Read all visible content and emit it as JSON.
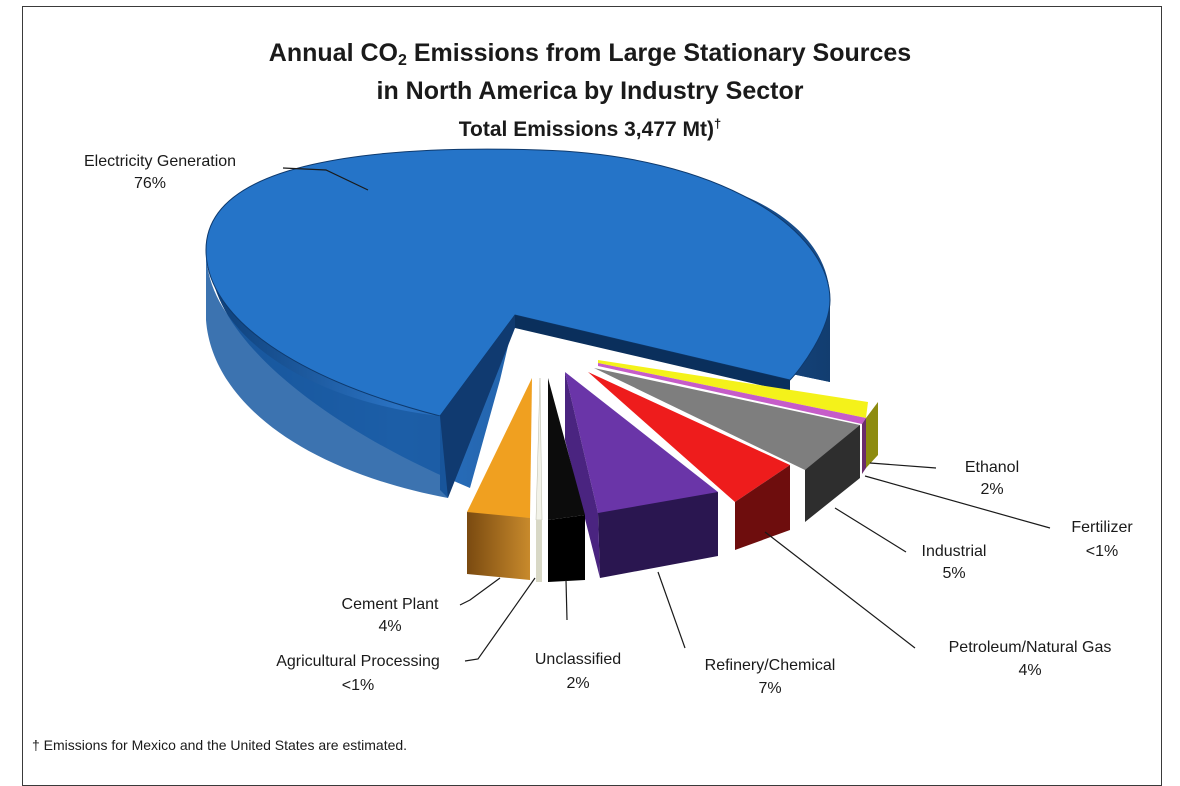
{
  "title": {
    "line1_prefix": "Annual CO",
    "line1_sub": "2",
    "line1_suffix": " Emissions from Large Stationary Sources",
    "line2": "in North America by Industry Sector",
    "subtitle_text": "Total Emissions 3,477 Mt)",
    "subtitle_mark": "†"
  },
  "footnote": "† Emissions for Mexico and the United States are estimated.",
  "chart_data": {
    "type": "pie",
    "title": "Annual CO2 Emissions from Large Stationary Sources in North America by Industry Sector",
    "subtitle": "Total Emissions 3,477 Mt)†",
    "style": "3D exploded pie",
    "slices": [
      {
        "name": "Electricity Generation",
        "label_value": "76%",
        "value": 76,
        "color": "#1f6fc4"
      },
      {
        "name": "Ethanol",
        "label_value": "2%",
        "value": 2,
        "color": "#e8e80e"
      },
      {
        "name": "Fertilizer",
        "label_value": "<1%",
        "value": 0.5,
        "color": "#c058c8"
      },
      {
        "name": "Industrial",
        "label_value": "5%",
        "value": 5,
        "color": "#7e7e7e"
      },
      {
        "name": "Petroleum/Natural Gas",
        "label_value": "4%",
        "value": 4,
        "color": "#ee1c1c"
      },
      {
        "name": "Refinery/Chemical",
        "label_value": "7%",
        "value": 7,
        "color": "#6a35a8"
      },
      {
        "name": "Unclassified",
        "label_value": "2%",
        "value": 2,
        "color": "#0c0c0c"
      },
      {
        "name": "Agricultural Processing",
        "label_value": "<1%",
        "value": 0.5,
        "color": "#f2f2e8"
      },
      {
        "name": "Cement Plant",
        "label_value": "4%",
        "value": 4,
        "color": "#f0a020"
      }
    ]
  }
}
